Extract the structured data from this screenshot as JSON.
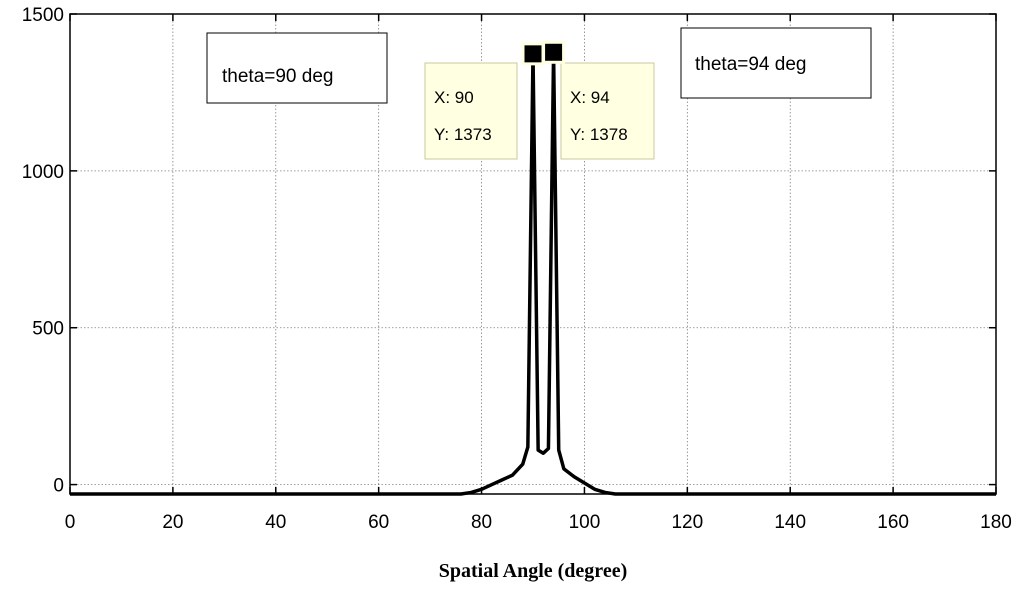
{
  "chart_data": {
    "type": "line",
    "title": "",
    "xlabel": "Spatial Angle  (degree)",
    "ylabel": "",
    "xlim": [
      0,
      180
    ],
    "ylim": [
      -30,
      1500
    ],
    "xticks": [
      0,
      20,
      40,
      60,
      80,
      100,
      120,
      140,
      160,
      180
    ],
    "yticks": [
      0,
      500,
      1000,
      1500
    ],
    "grid": true,
    "series": [
      {
        "color": "#000000",
        "x": [
          0,
          76,
          78,
          80,
          82,
          84,
          86,
          88,
          89,
          90,
          91,
          92,
          93,
          94,
          95,
          96,
          98,
          100,
          102,
          104,
          106,
          108,
          180
        ],
        "y": [
          -30,
          -30,
          -25,
          -15,
          0,
          15,
          30,
          65,
          120,
          1373,
          110,
          100,
          115,
          1378,
          110,
          50,
          25,
          5,
          -15,
          -25,
          -30,
          -30,
          -30
        ]
      }
    ],
    "annotations": [
      {
        "text": "theta=90 deg"
      },
      {
        "text": "theta=94 deg"
      }
    ],
    "datatips": [
      {
        "x_label": "X: 90",
        "y_label": "Y: 1373",
        "x": 90,
        "y": 1373
      },
      {
        "x_label": "X: 94",
        "y_label": "Y: 1378",
        "x": 94,
        "y": 1378
      }
    ],
    "colors": {
      "line": "#000000",
      "grid": "#808080",
      "tip_bg": "#ffffe1",
      "tip_border": "#c8c8a0"
    }
  }
}
